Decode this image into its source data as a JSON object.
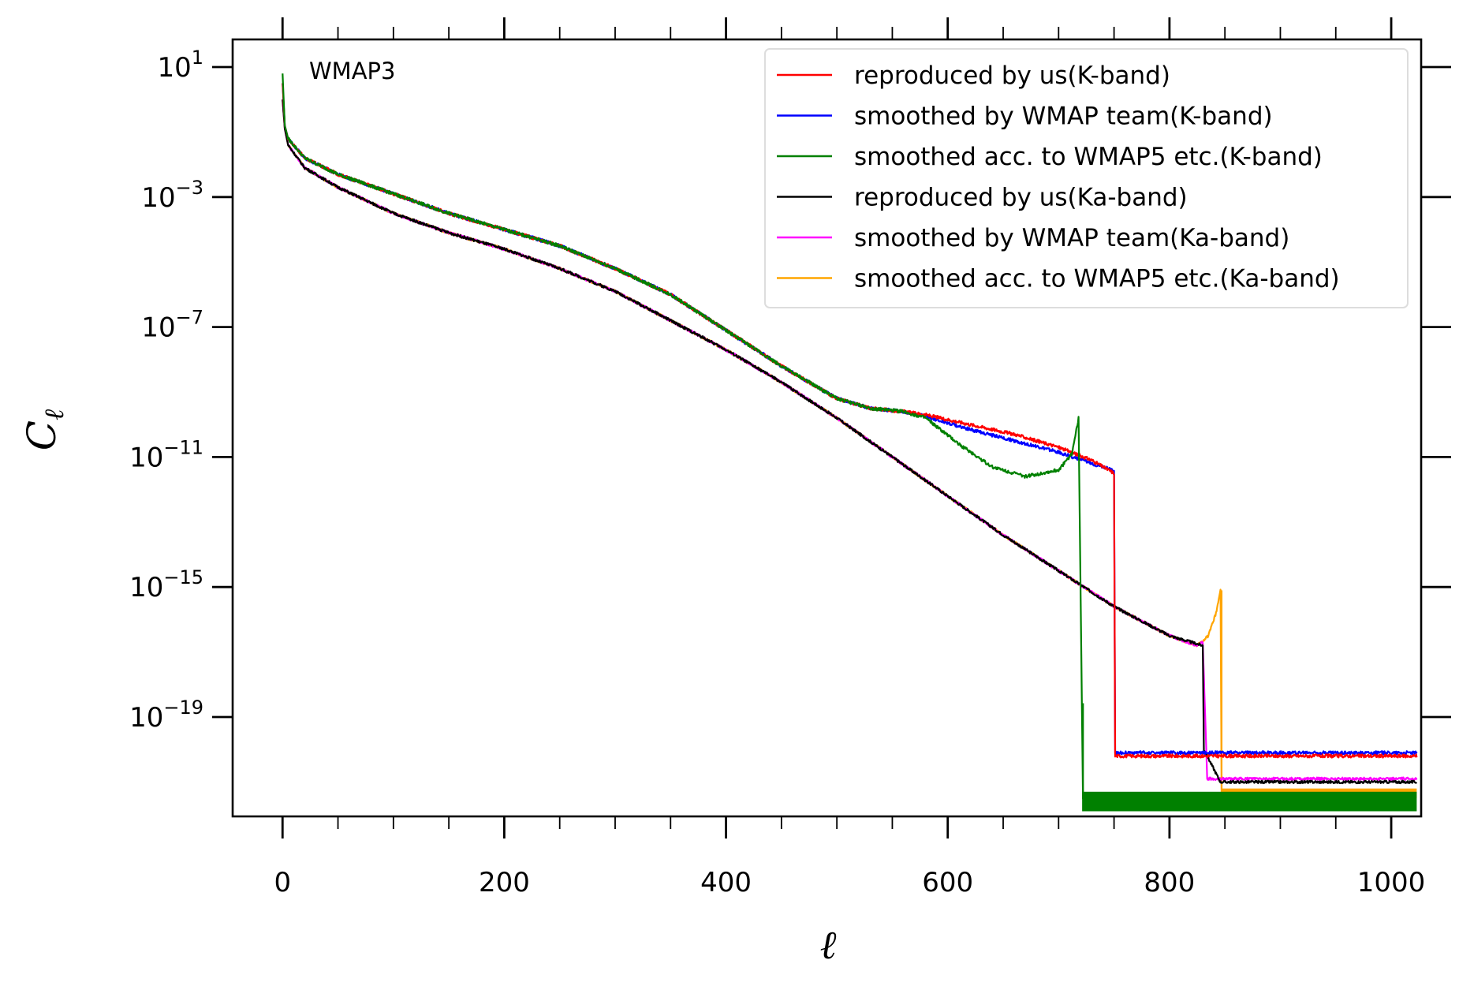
{
  "chart_data": {
    "type": "line",
    "annotation": "WMAP3",
    "xlabel": "ℓ",
    "ylabel": "Cℓ",
    "xlim": [
      -45,
      1027
    ],
    "ylim_log10": [
      -22,
      22
    ],
    "yscale": "log",
    "x_ticks": [
      0,
      200,
      400,
      600,
      800,
      1000
    ],
    "x_tick_labels": [
      "0",
      "200",
      "400",
      "600",
      "800",
      "1000"
    ],
    "y_ticks_log10": [
      1,
      -3,
      -7,
      -11,
      -15,
      -19
    ],
    "y_tick_labels": [
      {
        "base": "10",
        "exp": "1"
      },
      {
        "base": "10",
        "exp": "−3"
      },
      {
        "base": "10",
        "exp": "−7"
      },
      {
        "base": "10",
        "exp": "−11"
      },
      {
        "base": "10",
        "exp": "−15"
      },
      {
        "base": "10",
        "exp": "−19"
      }
    ],
    "grid": false,
    "legend_position": "top-right",
    "series": [
      {
        "name": "reproduced by us(K-band)",
        "color": "#ff0000",
        "points_log10": [
          [
            0,
            0.5
          ],
          [
            2,
            -0.8
          ],
          [
            5,
            -1.2
          ],
          [
            20,
            -1.8
          ],
          [
            50,
            -2.3
          ],
          [
            100,
            -2.9
          ],
          [
            150,
            -3.5
          ],
          [
            200,
            -4.0
          ],
          [
            250,
            -4.5
          ],
          [
            300,
            -5.2
          ],
          [
            350,
            -6.0
          ],
          [
            400,
            -7.1
          ],
          [
            450,
            -8.2
          ],
          [
            500,
            -9.2
          ],
          [
            530,
            -9.5
          ],
          [
            560,
            -9.6
          ],
          [
            580,
            -9.7
          ],
          [
            620,
            -10.0
          ],
          [
            660,
            -10.3
          ],
          [
            700,
            -10.7
          ],
          [
            730,
            -11.1
          ],
          [
            750,
            -11.5
          ],
          [
            751,
            -20.2
          ],
          [
            1023,
            -20.2
          ]
        ],
        "noise": 0.05
      },
      {
        "name": "smoothed by WMAP team(K-band)",
        "color": "#0000ff",
        "points_log10": [
          [
            0,
            0.5
          ],
          [
            2,
            -0.8
          ],
          [
            5,
            -1.2
          ],
          [
            20,
            -1.8
          ],
          [
            50,
            -2.3
          ],
          [
            100,
            -2.9
          ],
          [
            150,
            -3.5
          ],
          [
            200,
            -4.0
          ],
          [
            250,
            -4.5
          ],
          [
            300,
            -5.2
          ],
          [
            350,
            -6.0
          ],
          [
            400,
            -7.1
          ],
          [
            450,
            -8.2
          ],
          [
            500,
            -9.2
          ],
          [
            530,
            -9.5
          ],
          [
            560,
            -9.6
          ],
          [
            580,
            -9.75
          ],
          [
            620,
            -10.15
          ],
          [
            660,
            -10.5
          ],
          [
            700,
            -10.85
          ],
          [
            730,
            -11.2
          ],
          [
            750,
            -11.4
          ],
          [
            751,
            -20.1
          ],
          [
            1023,
            -20.1
          ]
        ],
        "noise": 0.05
      },
      {
        "name": "smoothed acc. to WMAP5 etc.(K-band)",
        "color": "#008000",
        "points_log10": [
          [
            0,
            0.8
          ],
          [
            2,
            -0.8
          ],
          [
            5,
            -1.2
          ],
          [
            20,
            -1.8
          ],
          [
            50,
            -2.3
          ],
          [
            100,
            -2.9
          ],
          [
            150,
            -3.5
          ],
          [
            200,
            -4.0
          ],
          [
            250,
            -4.5
          ],
          [
            300,
            -5.2
          ],
          [
            350,
            -6.0
          ],
          [
            400,
            -7.1
          ],
          [
            450,
            -8.2
          ],
          [
            500,
            -9.2
          ],
          [
            530,
            -9.5
          ],
          [
            560,
            -9.6
          ],
          [
            580,
            -9.8
          ],
          [
            610,
            -10.6
          ],
          [
            640,
            -11.3
          ],
          [
            670,
            -11.6
          ],
          [
            700,
            -11.4
          ],
          [
            712,
            -10.9
          ],
          [
            718,
            -9.8
          ],
          [
            722,
            -21.5
          ],
          [
            1023,
            -21.5
          ]
        ],
        "noise": 0.05,
        "band_from": 722,
        "band_log10": [
          -21.3,
          -21.9
        ]
      },
      {
        "name": "reproduced by us(Ka-band)",
        "color": "#000000",
        "points_log10": [
          [
            0,
            0.0
          ],
          [
            2,
            -0.9
          ],
          [
            5,
            -1.4
          ],
          [
            20,
            -2.1
          ],
          [
            50,
            -2.7
          ],
          [
            100,
            -3.5
          ],
          [
            150,
            -4.1
          ],
          [
            200,
            -4.6
          ],
          [
            250,
            -5.2
          ],
          [
            300,
            -5.9
          ],
          [
            350,
            -6.8
          ],
          [
            400,
            -7.7
          ],
          [
            450,
            -8.7
          ],
          [
            500,
            -9.8
          ],
          [
            550,
            -11.0
          ],
          [
            600,
            -12.2
          ],
          [
            650,
            -13.4
          ],
          [
            700,
            -14.5
          ],
          [
            750,
            -15.6
          ],
          [
            800,
            -16.5
          ],
          [
            830,
            -16.8
          ],
          [
            831,
            -20.0
          ],
          [
            846,
            -21.0
          ],
          [
            847,
            -21.0
          ],
          [
            1023,
            -21.0
          ]
        ],
        "noise": 0.04
      },
      {
        "name": "smoothed by WMAP team(Ka-band)",
        "color": "#ff00ff",
        "points_log10": [
          [
            0,
            0.0
          ],
          [
            2,
            -0.9
          ],
          [
            5,
            -1.4
          ],
          [
            20,
            -2.1
          ],
          [
            50,
            -2.7
          ],
          [
            100,
            -3.5
          ],
          [
            150,
            -4.1
          ],
          [
            200,
            -4.6
          ],
          [
            250,
            -5.2
          ],
          [
            300,
            -5.9
          ],
          [
            350,
            -6.8
          ],
          [
            400,
            -7.7
          ],
          [
            450,
            -8.7
          ],
          [
            500,
            -9.8
          ],
          [
            550,
            -11.0
          ],
          [
            600,
            -12.2
          ],
          [
            650,
            -13.4
          ],
          [
            700,
            -14.5
          ],
          [
            750,
            -15.6
          ],
          [
            800,
            -16.5
          ],
          [
            825,
            -16.8
          ],
          [
            830,
            -16.7
          ],
          [
            834,
            -20.9
          ],
          [
            1023,
            -20.9
          ]
        ],
        "noise": 0.04
      },
      {
        "name": "smoothed acc. to WMAP5 etc.(Ka-band)",
        "color": "#ffa500",
        "points_log10": [
          [
            0,
            0.0
          ],
          [
            2,
            -0.9
          ],
          [
            5,
            -1.4
          ],
          [
            20,
            -2.1
          ],
          [
            50,
            -2.7
          ],
          [
            100,
            -3.5
          ],
          [
            150,
            -4.1
          ],
          [
            200,
            -4.6
          ],
          [
            250,
            -5.2
          ],
          [
            300,
            -5.9
          ],
          [
            350,
            -6.8
          ],
          [
            400,
            -7.7
          ],
          [
            450,
            -8.7
          ],
          [
            500,
            -9.8
          ],
          [
            550,
            -11.0
          ],
          [
            600,
            -12.2
          ],
          [
            650,
            -13.4
          ],
          [
            700,
            -14.5
          ],
          [
            750,
            -15.6
          ],
          [
            800,
            -16.5
          ],
          [
            825,
            -16.8
          ],
          [
            835,
            -16.5
          ],
          [
            842,
            -15.8
          ],
          [
            846,
            -15.1
          ],
          [
            847,
            -21.3
          ],
          [
            1023,
            -21.3
          ]
        ],
        "noise": 0.04,
        "band_from": 847,
        "band_log10": [
          -21.2,
          -21.5
        ]
      }
    ]
  }
}
